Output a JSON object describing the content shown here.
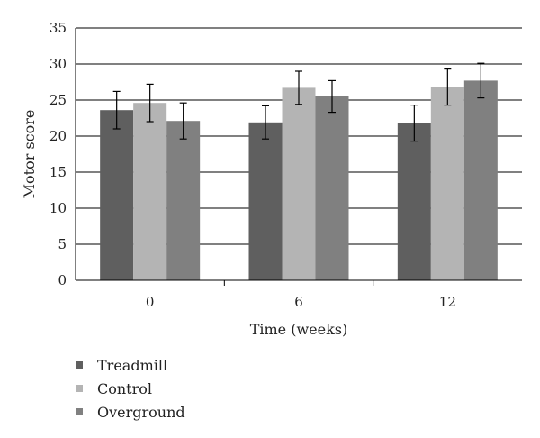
{
  "chart_data": {
    "type": "bar",
    "categories": [
      "0",
      "6",
      "12"
    ],
    "series": [
      {
        "name": "Treadmill",
        "color": "#5f5f5f",
        "values": [
          23.6,
          21.9,
          21.8
        ],
        "errors": [
          2.6,
          2.3,
          2.5
        ]
      },
      {
        "name": "Control",
        "color": "#b4b4b4",
        "values": [
          24.6,
          26.7,
          26.8
        ],
        "errors": [
          2.6,
          2.3,
          2.5
        ]
      },
      {
        "name": "Overground",
        "color": "#808080",
        "values": [
          22.1,
          25.5,
          27.7
        ],
        "errors": [
          2.5,
          2.2,
          2.4
        ]
      }
    ],
    "xlabel": "Time (weeks)",
    "ylabel": "Motor score",
    "ylim": [
      0,
      35
    ],
    "yticks": [
      0,
      5,
      10,
      15,
      20,
      25,
      30,
      35
    ],
    "grid": true,
    "legend_position": "bottom-left"
  }
}
